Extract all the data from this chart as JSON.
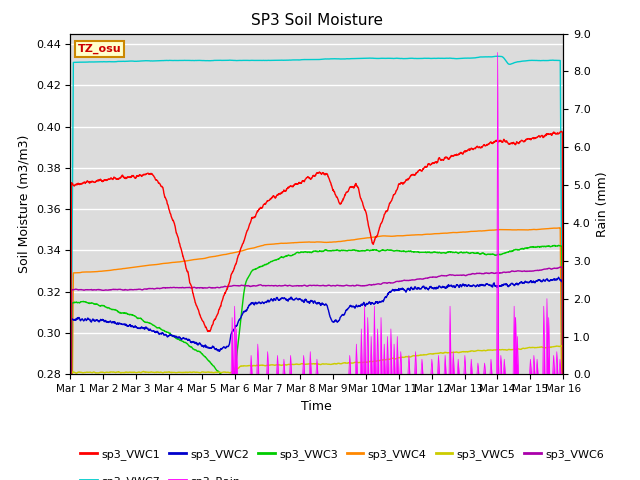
{
  "title": "SP3 Soil Moisture",
  "xlabel": "Time",
  "ylabel_left": "Soil Moisture (m3/m3)",
  "ylabel_right": "Rain (mm)",
  "xlim_days": [
    0,
    15
  ],
  "ylim_left": [
    0.28,
    0.445
  ],
  "ylim_right": [
    0.0,
    9.0
  ],
  "x_tick_labels": [
    "Mar 1",
    "Mar 2",
    "Mar 3",
    "Mar 4",
    "Mar 5",
    "Mar 6",
    "Mar 7",
    "Mar 8",
    "Mar 9",
    "Mar 10",
    "Mar 11",
    "Mar 12",
    "Mar 13",
    "Mar 14",
    "Mar 15",
    "Mar 16"
  ],
  "colors": {
    "sp3_VWC1": "#ff0000",
    "sp3_VWC2": "#0000cc",
    "sp3_VWC3": "#00cc00",
    "sp3_VWC4": "#ff8800",
    "sp3_VWC5": "#cccc00",
    "sp3_VWC6": "#aa00aa",
    "sp3_VWC7": "#00cccc",
    "sp3_Rain": "#ff00ff"
  },
  "bg_color": "#dcdcdc",
  "tz_label": "TZ_osu",
  "yticks_left": [
    0.28,
    0.3,
    0.32,
    0.34,
    0.36,
    0.38,
    0.4,
    0.42,
    0.44
  ],
  "yticks_right": [
    0.0,
    1.0,
    2.0,
    3.0,
    4.0,
    5.0,
    6.0,
    7.0,
    8.0,
    9.0
  ]
}
